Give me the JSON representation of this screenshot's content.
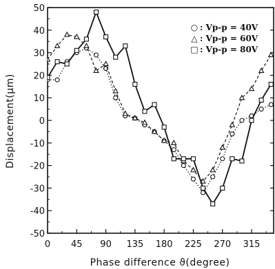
{
  "chart_data": {
    "type": "line",
    "xlabel": "Phase difference ϑ(degree)",
    "ylabel": "Displacement(μm)",
    "xlim": [
      0,
      349
    ],
    "ylim": [
      -50,
      50
    ],
    "xticks": [
      0,
      45,
      90,
      135,
      180,
      225,
      270,
      315
    ],
    "yticks": [
      50,
      40,
      30,
      20,
      10,
      0,
      -10,
      -20,
      -30,
      -40,
      -50
    ],
    "grid": false,
    "legend_position": "top-right",
    "series": [
      {
        "name": "Vp-p = 40V",
        "marker": "circle",
        "line_style": "dotted",
        "x": [
          0,
          15,
          30,
          45,
          60,
          75,
          90,
          105,
          120,
          135,
          150,
          165,
          180,
          195,
          210,
          225,
          240,
          255,
          270,
          285,
          300,
          315,
          330,
          345
        ],
        "y": [
          18,
          18,
          26,
          30,
          32,
          29,
          23,
          10,
          2,
          1,
          -2,
          -5,
          -9,
          -13,
          -20,
          -26,
          -32,
          -25,
          -17,
          -6,
          0,
          2,
          5,
          7
        ]
      },
      {
        "name": "Vp-p = 60V",
        "marker": "triangle",
        "line_style": "dashed",
        "x": [
          0,
          15,
          30,
          45,
          60,
          75,
          90,
          105,
          120,
          135,
          150,
          165,
          180,
          195,
          210,
          225,
          240,
          255,
          270,
          285,
          300,
          315,
          330,
          345
        ],
        "y": [
          27,
          33,
          38,
          37,
          33,
          22,
          25,
          13,
          3,
          1,
          -1,
          -5,
          -9,
          -10,
          -18,
          -22,
          -27,
          -22,
          -12,
          -2,
          10,
          14,
          22,
          29
        ]
      },
      {
        "name": "Vp-p = 80V",
        "marker": "square",
        "line_style": "solid",
        "x": [
          0,
          15,
          30,
          45,
          60,
          75,
          90,
          105,
          120,
          135,
          150,
          165,
          180,
          195,
          210,
          225,
          240,
          255,
          270,
          285,
          300,
          315,
          330,
          345
        ],
        "y": [
          19,
          26,
          25,
          31,
          36,
          48,
          37,
          28,
          33,
          16,
          4,
          7,
          -3,
          -17,
          -17,
          -17,
          -30,
          -37,
          -30,
          -17,
          -18,
          0,
          9,
          16
        ]
      }
    ],
    "legend": [
      {
        "symbol": "○",
        "label": ": Vp-p = 40V"
      },
      {
        "symbol": "△",
        "label": ": Vp-p = 60V"
      },
      {
        "symbol": "□",
        "label": ": Vp-p = 80V"
      }
    ]
  }
}
